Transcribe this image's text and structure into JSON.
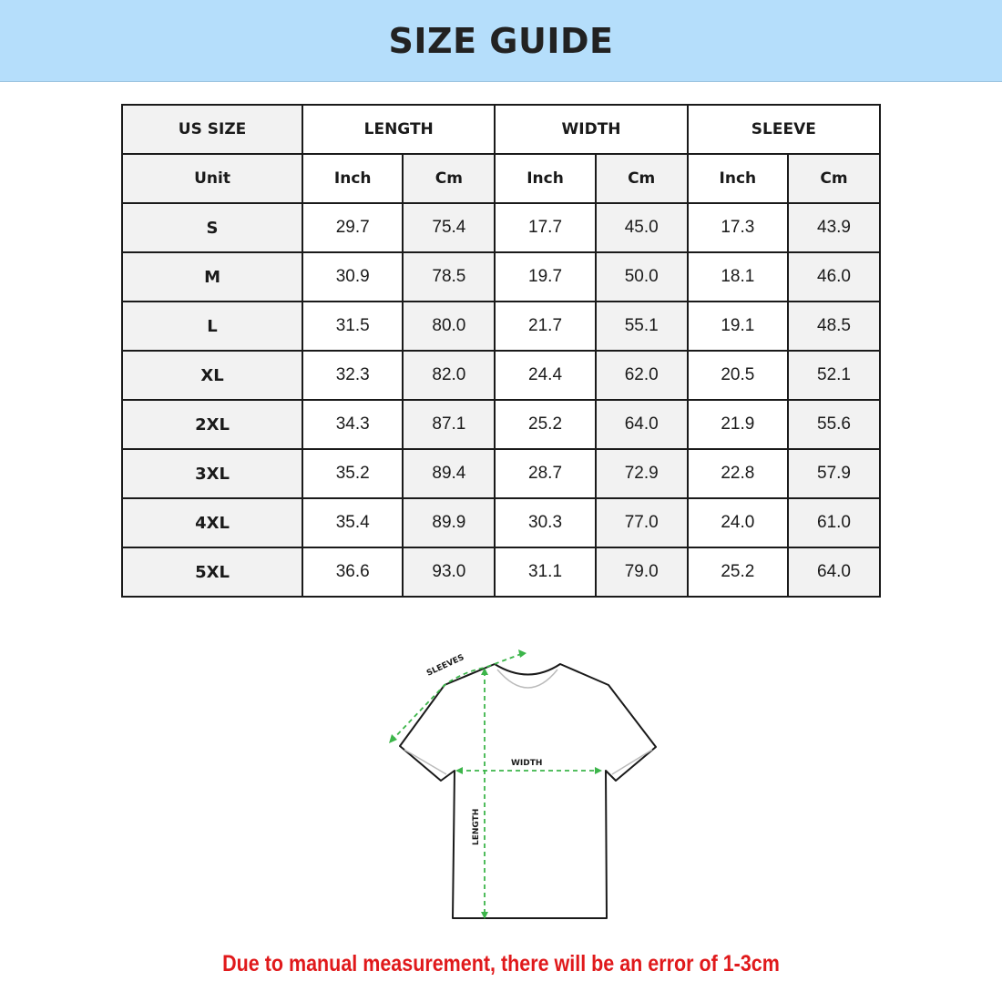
{
  "title": "SIZE GUIDE",
  "table": {
    "headers": [
      "US SIZE",
      "LENGTH",
      "WIDTH",
      "SLEEVE"
    ],
    "unit_row": [
      "Unit",
      "Inch",
      "Cm",
      "Inch",
      "Cm",
      "Inch",
      "Cm"
    ],
    "rows": [
      [
        "S",
        "29.7",
        "75.4",
        "17.7",
        "45.0",
        "17.3",
        "43.9"
      ],
      [
        "M",
        "30.9",
        "78.5",
        "19.7",
        "50.0",
        "18.1",
        "46.0"
      ],
      [
        "L",
        "31.5",
        "80.0",
        "21.7",
        "55.1",
        "19.1",
        "48.5"
      ],
      [
        "XL",
        "32.3",
        "82.0",
        "24.4",
        "62.0",
        "20.5",
        "52.1"
      ],
      [
        "2XL",
        "34.3",
        "87.1",
        "25.2",
        "64.0",
        "21.9",
        "55.6"
      ],
      [
        "3XL",
        "35.2",
        "89.4",
        "28.7",
        "72.9",
        "22.8",
        "57.9"
      ],
      [
        "4XL",
        "35.4",
        "89.9",
        "30.3",
        "77.0",
        "24.0",
        "61.0"
      ],
      [
        "5XL",
        "36.6",
        "93.0",
        "31.1",
        "79.0",
        "25.2",
        "64.0"
      ]
    ]
  },
  "diagram": {
    "labels": {
      "sleeves": "SLEEVES",
      "width": "WIDTH",
      "length": "LENGTH"
    },
    "measure_color": "#3cb54a"
  },
  "note": "Due to manual measurement, there will be an error of 1-3cm",
  "colors": {
    "banner": "#b5defb",
    "note": "#e0191b"
  }
}
